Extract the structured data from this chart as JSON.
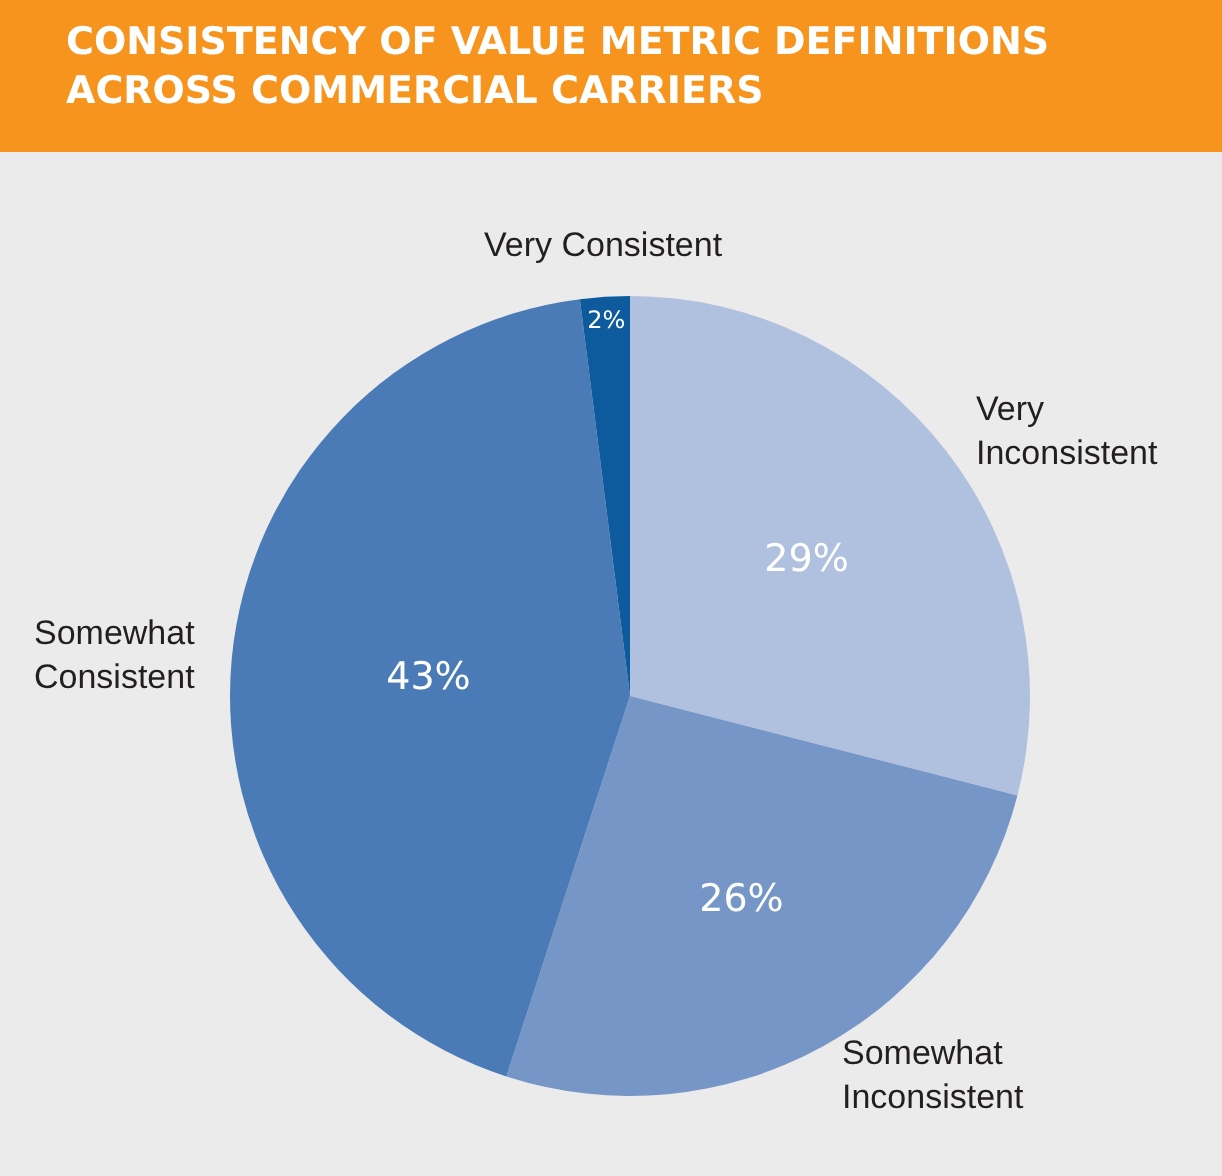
{
  "chart_data": {
    "type": "pie",
    "title": "CONSISTENCY OF VALUE METRIC DEFINITIONS ACROSS COMMERCIAL CARRIERS",
    "categories": [
      "Very Inconsistent",
      "Somewhat Inconsistent",
      "Somewhat Consistent",
      "Very Consistent"
    ],
    "values": [
      29,
      26,
      43,
      2
    ],
    "value_labels": [
      "29%",
      "26%",
      "43%",
      "2%"
    ],
    "colors": [
      "#b0c0df",
      "#7596c6",
      "#4a7bb6",
      "#0d5a9d"
    ],
    "legend": false
  }
}
